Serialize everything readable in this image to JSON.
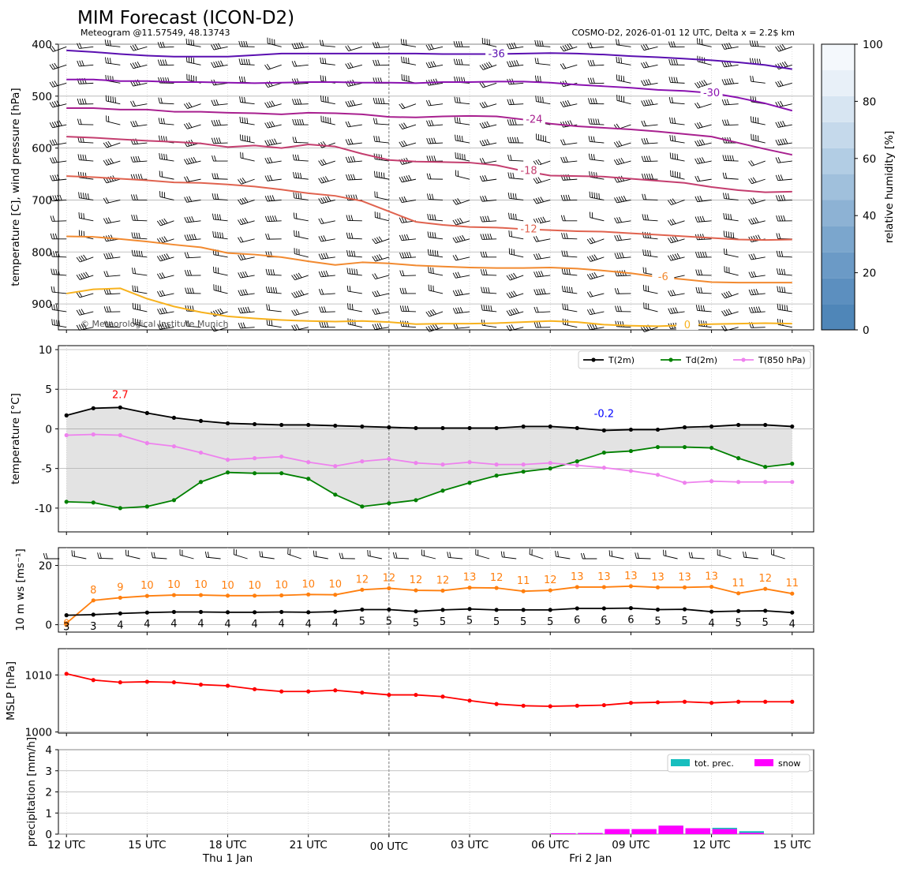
{
  "header": {
    "title": "MIM Forecast (ICON-D2)",
    "subtitle_left": "Meteogram @11.57549, 48.13743",
    "subtitle_right": "COSMO-D2, 2026-01-01 12 UTC, Delta x = 2.2$ km",
    "copyright": "© Meteorological Institute Munich"
  },
  "time_axis": {
    "ticks": [
      "12 UTC",
      "15 UTC",
      "18 UTC",
      "21 UTC",
      "00 UTC",
      "03 UTC",
      "06 UTC",
      "09 UTC",
      "12 UTC",
      "15 UTC"
    ],
    "tick_hours": [
      0,
      3,
      6,
      9,
      12,
      15,
      18,
      21,
      24,
      27
    ],
    "date_labels": [
      {
        "label": "Thu 1 Jan",
        "hour": 6
      },
      {
        "label": "Fri 2 Jan",
        "hour": 19.5
      }
    ],
    "midnight_hour": 12,
    "range_hours": [
      -0.3,
      27.8
    ]
  },
  "chart_data": [
    {
      "type": "line",
      "panel": "upper-air",
      "ylabel": "temperature [C], wind pressure [hPa]",
      "y_inverted": true,
      "ylim": [
        400,
        950
      ],
      "yticks": [
        400,
        500,
        600,
        700,
        800,
        900
      ],
      "colorbar": {
        "label": "relative humidity [%]",
        "ticks": [
          0,
          20,
          40,
          60,
          80,
          100
        ],
        "colors": [
          "#4f86b8",
          "#5c8fbf",
          "#6b9ac6",
          "#7ba6cd",
          "#8db2d4",
          "#a0c0dc",
          "#b2cde4",
          "#c5d9eb",
          "#d7e5f2",
          "#e8f0f8",
          "#f4f8fc"
        ]
      },
      "isotherm_hours": [
        0,
        1,
        2,
        3,
        4,
        5,
        6,
        7,
        8,
        9,
        10,
        11,
        12,
        13,
        14,
        15,
        16,
        17,
        18,
        19,
        20,
        21,
        22,
        23,
        24,
        25,
        26,
        27
      ],
      "isotherms": [
        {
          "label": "-36",
          "color": "#5a0fb0",
          "label_hour": 16.0,
          "pressure": [
            412,
            415,
            419,
            422,
            424,
            424,
            424,
            421,
            418,
            418,
            418,
            418,
            418,
            418,
            419,
            419,
            419,
            418,
            417,
            418,
            420,
            423,
            425,
            428,
            431,
            435,
            440,
            448
          ]
        },
        {
          "label": "-30",
          "color": "#8a12b0",
          "label_hour": 24.0,
          "pressure": [
            468,
            468,
            471,
            471,
            473,
            473,
            474,
            475,
            474,
            473,
            473,
            474,
            474,
            475,
            473,
            473,
            472,
            472,
            474,
            478,
            481,
            484,
            488,
            490,
            494,
            503,
            514,
            528
          ]
        },
        {
          "label": "-24",
          "color": "#a8208f",
          "label_hour": 17.4,
          "pressure": [
            523,
            523,
            526,
            526,
            530,
            530,
            532,
            533,
            535,
            532,
            533,
            535,
            540,
            541,
            539,
            538,
            539,
            545,
            553,
            558,
            561,
            564,
            568,
            573,
            578,
            590,
            602,
            613
          ]
        },
        {
          "label": "-18",
          "color": "#c43e6f",
          "label_hour": 17.2,
          "pressure": [
            578,
            580,
            583,
            586,
            588,
            591,
            598,
            595,
            600,
            593,
            597,
            611,
            623,
            626,
            627,
            628,
            633,
            644,
            653,
            654,
            655,
            659,
            663,
            667,
            675,
            681,
            685,
            684
          ]
        },
        {
          "label": "-12",
          "color": "#e0634f",
          "label_hour": 17.2,
          "pressure": [
            654,
            656,
            659,
            662,
            666,
            667,
            670,
            674,
            680,
            687,
            692,
            702,
            722,
            742,
            748,
            752,
            753,
            756,
            758,
            760,
            761,
            764,
            767,
            770,
            773,
            776,
            777,
            776
          ]
        },
        {
          "label": "-6",
          "color": "#f28a30",
          "label_hour": 22.2,
          "pressure": [
            770,
            771,
            775,
            780,
            786,
            791,
            802,
            805,
            810,
            818,
            825,
            820,
            822,
            826,
            828,
            830,
            831,
            831,
            830,
            832,
            836,
            841,
            848,
            853,
            858,
            859,
            859,
            859
          ]
        },
        {
          "label": "0",
          "color": "#f7b21e",
          "label_hour": 23.1,
          "pressure": [
            880,
            872,
            870,
            890,
            905,
            916,
            924,
            928,
            931,
            933,
            934,
            933,
            935,
            939,
            938,
            938,
            937,
            935,
            933,
            935,
            940,
            942,
            943,
            941,
            939,
            938,
            937,
            938
          ]
        }
      ],
      "barb_rows": [
        405,
        440,
        475,
        515,
        555,
        590,
        625,
        660,
        700,
        740,
        775,
        810,
        845,
        880,
        915,
        945
      ]
    },
    {
      "type": "line",
      "panel": "temperature",
      "ylabel": "temperature [$^\\circ$C]",
      "ylim": [
        -13,
        10.5
      ],
      "yticks": [
        -10,
        -5,
        0,
        5,
        10
      ],
      "x": [
        0,
        1,
        2,
        3,
        4,
        5,
        6,
        7,
        8,
        9,
        10,
        11,
        12,
        13,
        14,
        15,
        16,
        17,
        18,
        19,
        20,
        21,
        22,
        23,
        24,
        25,
        26,
        27
      ],
      "series": [
        {
          "name": "T(2m)",
          "color": "#000000",
          "values": [
            1.7,
            2.6,
            2.7,
            2.0,
            1.4,
            1.0,
            0.7,
            0.6,
            0.5,
            0.5,
            0.4,
            0.3,
            0.2,
            0.1,
            0.1,
            0.1,
            0.1,
            0.3,
            0.3,
            0.1,
            -0.2,
            -0.1,
            -0.1,
            0.2,
            0.3,
            0.5,
            0.5,
            0.3
          ]
        },
        {
          "name": "Td(2m)",
          "color": "#008000",
          "values": [
            -9.2,
            -9.3,
            -10.0,
            -9.8,
            -9.0,
            -6.7,
            -5.5,
            -5.6,
            -5.6,
            -6.3,
            -8.3,
            -9.8,
            -9.4,
            -9.0,
            -7.8,
            -6.8,
            -5.9,
            -5.4,
            -5.0,
            -4.1,
            -3.0,
            -2.8,
            -2.3,
            -2.3,
            -2.4,
            -3.7,
            -4.8,
            -4.4
          ]
        },
        {
          "name": "T(850 hPa)",
          "color": "#ee82ee",
          "values": [
            -0.8,
            -0.7,
            -0.8,
            -1.8,
            -2.2,
            -3.0,
            -3.9,
            -3.7,
            -3.5,
            -4.2,
            -4.7,
            -4.1,
            -3.8,
            -4.3,
            -4.5,
            -4.2,
            -4.5,
            -4.5,
            -4.3,
            -4.6,
            -4.9,
            -5.3,
            -5.8,
            -6.8,
            -6.6,
            -6.7,
            -6.7,
            -6.7
          ]
        }
      ],
      "annotations": [
        {
          "text": "2.7",
          "color": "#ff0000",
          "x": 2,
          "y": 4.4
        },
        {
          "text": "-0.2",
          "color": "#0000ff",
          "x": 20,
          "y": 2.0
        }
      ],
      "legend": "top-right"
    },
    {
      "type": "line",
      "panel": "wind",
      "ylabel": "10 m ws [ms$^{-1}$]",
      "ylim": [
        -2.5,
        26
      ],
      "yticks": [
        0,
        20
      ],
      "x": [
        0,
        1,
        2,
        3,
        4,
        5,
        6,
        7,
        8,
        9,
        10,
        11,
        12,
        13,
        14,
        15,
        16,
        17,
        18,
        19,
        20,
        21,
        22,
        23,
        24,
        25,
        26,
        27
      ],
      "series": [
        {
          "color": "#ff7f0e",
          "values": [
            0.5,
            8.2,
            9.1,
            9.7,
            10.0,
            10.0,
            9.8,
            9.8,
            9.9,
            10.2,
            10.1,
            11.8,
            12.3,
            11.6,
            11.5,
            12.5,
            12.4,
            11.3,
            11.6,
            12.7,
            12.7,
            13.0,
            12.6,
            12.6,
            12.8,
            10.6,
            12.1,
            10.5
          ]
        },
        {
          "color": "#000000",
          "values": [
            3.2,
            3.4,
            3.8,
            4.1,
            4.3,
            4.3,
            4.2,
            4.2,
            4.3,
            4.2,
            4.4,
            5.1,
            5.1,
            4.5,
            5.0,
            5.3,
            5.0,
            5.0,
            5.0,
            5.5,
            5.5,
            5.6,
            5.1,
            5.2,
            4.4,
            4.6,
            4.7,
            4.1
          ]
        }
      ],
      "gust_labels": [
        "0",
        "8",
        "9",
        "10",
        "10",
        "10",
        "10",
        "10",
        "10",
        "10",
        "10",
        "12",
        "12",
        "12",
        "12",
        "13",
        "12",
        "11",
        "12",
        "13",
        "13",
        "13",
        "13",
        "13",
        "13",
        "11",
        "12",
        "11"
      ],
      "speed_labels": [
        "3",
        "3",
        "4",
        "4",
        "4",
        "4",
        "4",
        "4",
        "4",
        "4",
        "4",
        "5",
        "5",
        "5",
        "5",
        "5",
        "5",
        "5",
        "5",
        "6",
        "6",
        "6",
        "5",
        "5",
        "4",
        "5",
        "5",
        "4"
      ]
    },
    {
      "type": "line",
      "panel": "pressure",
      "ylabel": "MSLP [hPa]",
      "ylim": [
        999.8,
        1014.6
      ],
      "yticks": [
        1000,
        1010
      ],
      "x": [
        0,
        1,
        2,
        3,
        4,
        5,
        6,
        7,
        8,
        9,
        10,
        11,
        12,
        13,
        14,
        15,
        16,
        17,
        18,
        19,
        20,
        21,
        22,
        23,
        24,
        25,
        26,
        27
      ],
      "series": [
        {
          "color": "#ff0000",
          "values": [
            1010.2,
            1009.1,
            1008.7,
            1008.8,
            1008.7,
            1008.3,
            1008.1,
            1007.5,
            1007.1,
            1007.1,
            1007.3,
            1006.9,
            1006.5,
            1006.5,
            1006.2,
            1005.5,
            1004.9,
            1004.6,
            1004.5,
            1004.6,
            1004.7,
            1005.1,
            1005.2,
            1005.3,
            1005.1,
            1005.3,
            1005.3,
            1005.3
          ]
        }
      ]
    },
    {
      "type": "bar",
      "panel": "precipitation",
      "ylabel": "precipitation [mm/h]",
      "ylim": [
        0,
        4
      ],
      "yticks": [
        0,
        1,
        2,
        3,
        4
      ],
      "x": [
        18,
        19,
        20,
        21,
        22,
        23,
        24,
        25
      ],
      "series": [
        {
          "name": "tot. prec.",
          "color": "#17bebe",
          "values": [
            0.04,
            0.05,
            0.22,
            0.22,
            0.4,
            0.28,
            0.3,
            0.14
          ]
        },
        {
          "name": "snow",
          "color": "#ff00ff",
          "values": [
            0.04,
            0.05,
            0.24,
            0.24,
            0.4,
            0.28,
            0.24,
            0.06
          ]
        }
      ],
      "legend": "top-right"
    }
  ]
}
